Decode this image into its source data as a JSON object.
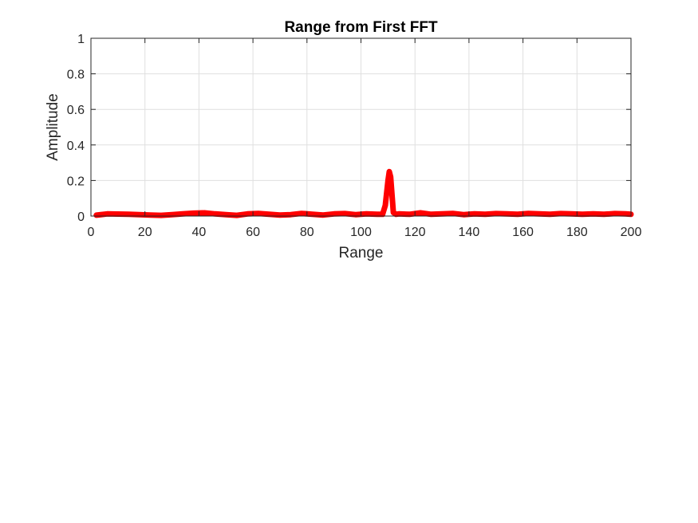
{
  "chart_data": {
    "type": "line",
    "title": "Range from First FFT",
    "xlabel": "Range",
    "ylabel": "Amplitude",
    "xlim": [
      0,
      200
    ],
    "ylim": [
      0,
      1
    ],
    "xticks": [
      "0",
      "20",
      "40",
      "60",
      "80",
      "100",
      "120",
      "140",
      "160",
      "180",
      "200"
    ],
    "yticks": [
      "0",
      "0.2",
      "0.4",
      "0.6",
      "0.8",
      "1"
    ],
    "grid": true,
    "line_color": "#ff0000",
    "series": [
      {
        "x": [
          2,
          6,
          10,
          14,
          18,
          22,
          26,
          30,
          34,
          38,
          42,
          46,
          50,
          54,
          58,
          62,
          66,
          70,
          74,
          78,
          82,
          86,
          90,
          94,
          98,
          102,
          106,
          108,
          109,
          110,
          110.5,
          111,
          111.5,
          112,
          113,
          114,
          118,
          122,
          126,
          130,
          134,
          138,
          142,
          146,
          150,
          154,
          158,
          162,
          166,
          170,
          174,
          178,
          182,
          186,
          190,
          194,
          198,
          200
        ],
        "y": [
          0.005,
          0.012,
          0.011,
          0.01,
          0.008,
          0.006,
          0.004,
          0.008,
          0.012,
          0.016,
          0.018,
          0.012,
          0.008,
          0.004,
          0.012,
          0.015,
          0.01,
          0.006,
          0.008,
          0.015,
          0.01,
          0.006,
          0.012,
          0.014,
          0.008,
          0.012,
          0.01,
          0.01,
          0.06,
          0.2,
          0.25,
          0.22,
          0.12,
          0.02,
          0.01,
          0.012,
          0.01,
          0.018,
          0.01,
          0.012,
          0.015,
          0.008,
          0.012,
          0.01,
          0.014,
          0.012,
          0.01,
          0.015,
          0.012,
          0.01,
          0.014,
          0.012,
          0.01,
          0.012,
          0.01,
          0.014,
          0.012,
          0.01
        ]
      }
    ]
  }
}
